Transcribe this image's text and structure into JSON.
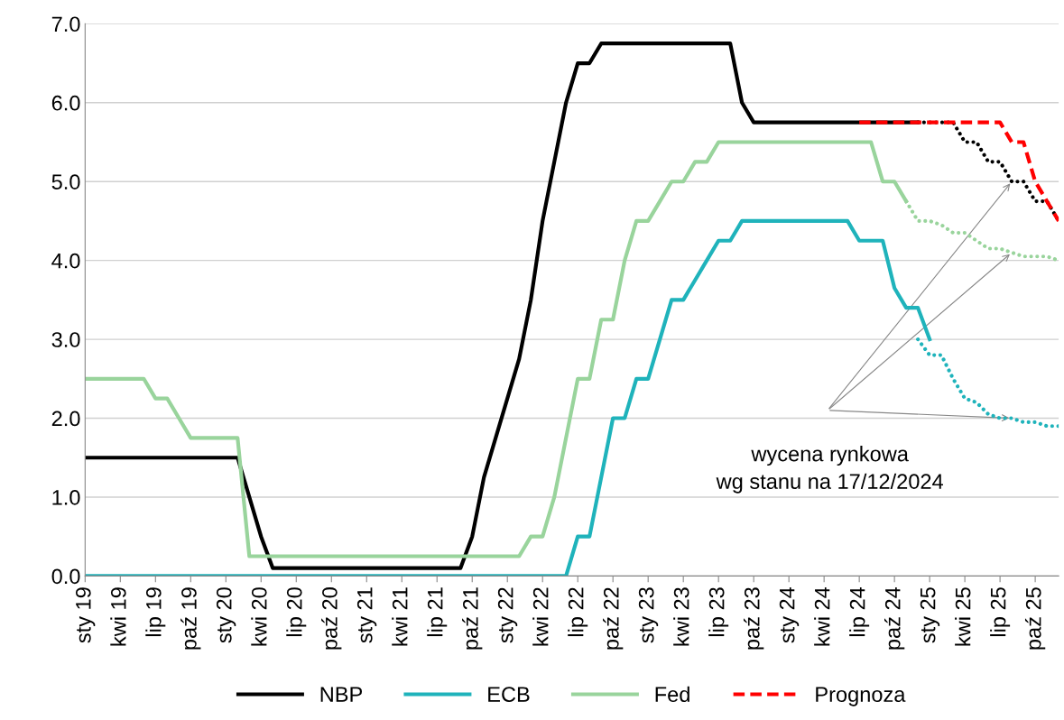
{
  "chart_data": {
    "type": "line",
    "categories": [
      "sty 19",
      null,
      null,
      "kwi 19",
      null,
      null,
      "lip 19",
      null,
      null,
      "paź 19",
      null,
      null,
      "sty 20",
      null,
      null,
      "kwi 20",
      null,
      null,
      "lip 20",
      null,
      null,
      "paź 20",
      null,
      null,
      "sty 21",
      null,
      null,
      "kwi 21",
      null,
      null,
      "lip 21",
      null,
      null,
      "paź 21",
      null,
      null,
      "sty 22",
      null,
      null,
      "kwi 22",
      null,
      null,
      "lip 22",
      null,
      null,
      "paź 22",
      null,
      null,
      "sty 23",
      null,
      null,
      "kwi 23",
      null,
      null,
      "lip 23",
      null,
      null,
      "paź 23",
      null,
      null,
      "sty 24",
      null,
      null,
      "kwi 24",
      null,
      null,
      "lip 24",
      null,
      null,
      "paź 24",
      null,
      null,
      "sty 25",
      null,
      null,
      "kwi 25",
      null,
      null,
      "lip 25",
      null,
      null,
      "paź 25",
      null,
      null
    ],
    "series": [
      {
        "name": "NBP",
        "color": "#000000",
        "line_style": "solid",
        "values": [
          1.5,
          1.5,
          1.5,
          1.5,
          1.5,
          1.5,
          1.5,
          1.5,
          1.5,
          1.5,
          1.5,
          1.5,
          1.5,
          1.5,
          1.0,
          0.5,
          0.1,
          0.1,
          0.1,
          0.1,
          0.1,
          0.1,
          0.1,
          0.1,
          0.1,
          0.1,
          0.1,
          0.1,
          0.1,
          0.1,
          0.1,
          0.1,
          0.1,
          0.5,
          1.25,
          1.75,
          2.25,
          2.75,
          3.5,
          4.5,
          5.25,
          6.0,
          6.5,
          6.5,
          6.75,
          6.75,
          6.75,
          6.75,
          6.75,
          6.75,
          6.75,
          6.75,
          6.75,
          6.75,
          6.75,
          6.75,
          6.0,
          5.75,
          5.75,
          5.75,
          5.75,
          5.75,
          5.75,
          5.75,
          5.75,
          5.75,
          5.75,
          5.75,
          5.75,
          5.75,
          5.75,
          5.75,
          null,
          null,
          null,
          null,
          null,
          null,
          null,
          null,
          null,
          null,
          null,
          null
        ]
      },
      {
        "name": "ECB",
        "color": "#1fb3bb",
        "line_style": "solid",
        "values": [
          0,
          0,
          0,
          0,
          0,
          0,
          0,
          0,
          0,
          0,
          0,
          0,
          0,
          0,
          0,
          0,
          0,
          0,
          0,
          0,
          0,
          0,
          0,
          0,
          0,
          0,
          0,
          0,
          0,
          0,
          0,
          0,
          0,
          0,
          0,
          0,
          0,
          0,
          0,
          0,
          0,
          0,
          0.5,
          0.5,
          1.25,
          2.0,
          2.0,
          2.5,
          2.5,
          3.0,
          3.5,
          3.5,
          3.75,
          4.0,
          4.25,
          4.25,
          4.5,
          4.5,
          4.5,
          4.5,
          4.5,
          4.5,
          4.5,
          4.5,
          4.5,
          4.5,
          4.25,
          4.25,
          4.25,
          3.65,
          3.4,
          3.4,
          3.0,
          null,
          null,
          null,
          null,
          null,
          null,
          null,
          null,
          null,
          null,
          null
        ]
      },
      {
        "name": "Fed",
        "color": "#99d49c",
        "line_style": "solid",
        "values": [
          2.5,
          2.5,
          2.5,
          2.5,
          2.5,
          2.5,
          2.25,
          2.25,
          2.0,
          1.75,
          1.75,
          1.75,
          1.75,
          1.75,
          0.25,
          0.25,
          0.25,
          0.25,
          0.25,
          0.25,
          0.25,
          0.25,
          0.25,
          0.25,
          0.25,
          0.25,
          0.25,
          0.25,
          0.25,
          0.25,
          0.25,
          0.25,
          0.25,
          0.25,
          0.25,
          0.25,
          0.25,
          0.25,
          0.5,
          0.5,
          1.0,
          1.75,
          2.5,
          2.5,
          3.25,
          3.25,
          4.0,
          4.5,
          4.5,
          4.75,
          5.0,
          5.0,
          5.25,
          5.25,
          5.5,
          5.5,
          5.5,
          5.5,
          5.5,
          5.5,
          5.5,
          5.5,
          5.5,
          5.5,
          5.5,
          5.5,
          5.5,
          5.5,
          5.0,
          5.0,
          4.75,
          null,
          null,
          null,
          null,
          null,
          null,
          null,
          null,
          null,
          null,
          null,
          null,
          null
        ]
      },
      {
        "color": "#000000",
        "line_style": "dotted",
        "values": [
          null,
          null,
          null,
          null,
          null,
          null,
          null,
          null,
          null,
          null,
          null,
          null,
          null,
          null,
          null,
          null,
          null,
          null,
          null,
          null,
          null,
          null,
          null,
          null,
          null,
          null,
          null,
          null,
          null,
          null,
          null,
          null,
          null,
          null,
          null,
          null,
          null,
          null,
          null,
          null,
          null,
          null,
          null,
          null,
          null,
          null,
          null,
          null,
          null,
          null,
          null,
          null,
          null,
          null,
          null,
          null,
          null,
          null,
          null,
          null,
          null,
          null,
          null,
          null,
          null,
          null,
          null,
          null,
          null,
          null,
          null,
          5.75,
          5.75,
          5.75,
          5.75,
          5.5,
          5.5,
          5.25,
          5.25,
          5.0,
          5.0,
          4.75,
          4.75,
          4.5
        ]
      },
      {
        "color": "#1fb3bb",
        "line_style": "dotted",
        "values": [
          null,
          null,
          null,
          null,
          null,
          null,
          null,
          null,
          null,
          null,
          null,
          null,
          null,
          null,
          null,
          null,
          null,
          null,
          null,
          null,
          null,
          null,
          null,
          null,
          null,
          null,
          null,
          null,
          null,
          null,
          null,
          null,
          null,
          null,
          null,
          null,
          null,
          null,
          null,
          null,
          null,
          null,
          null,
          null,
          null,
          null,
          null,
          null,
          null,
          null,
          null,
          null,
          null,
          null,
          null,
          null,
          null,
          null,
          null,
          null,
          null,
          null,
          null,
          null,
          null,
          null,
          null,
          null,
          null,
          null,
          null,
          3.0,
          2.8,
          2.8,
          2.5,
          2.25,
          2.2,
          2.05,
          2.0,
          2.0,
          1.95,
          1.95,
          1.9,
          1.9
        ]
      },
      {
        "color": "#99d49c",
        "line_style": "dotted",
        "values": [
          null,
          null,
          null,
          null,
          null,
          null,
          null,
          null,
          null,
          null,
          null,
          null,
          null,
          null,
          null,
          null,
          null,
          null,
          null,
          null,
          null,
          null,
          null,
          null,
          null,
          null,
          null,
          null,
          null,
          null,
          null,
          null,
          null,
          null,
          null,
          null,
          null,
          null,
          null,
          null,
          null,
          null,
          null,
          null,
          null,
          null,
          null,
          null,
          null,
          null,
          null,
          null,
          null,
          null,
          null,
          null,
          null,
          null,
          null,
          null,
          null,
          null,
          null,
          null,
          null,
          null,
          null,
          null,
          null,
          null,
          4.75,
          4.5,
          4.5,
          4.45,
          4.35,
          4.35,
          4.25,
          4.15,
          4.15,
          4.1,
          4.05,
          4.05,
          4.05,
          4.0
        ]
      },
      {
        "name": "Prognoza",
        "color": "#ff0000",
        "line_style": "dashed",
        "values": [
          null,
          null,
          null,
          null,
          null,
          null,
          null,
          null,
          null,
          null,
          null,
          null,
          null,
          null,
          null,
          null,
          null,
          null,
          null,
          null,
          null,
          null,
          null,
          null,
          null,
          null,
          null,
          null,
          null,
          null,
          null,
          null,
          null,
          null,
          null,
          null,
          null,
          null,
          null,
          null,
          null,
          null,
          null,
          null,
          null,
          null,
          null,
          null,
          null,
          null,
          null,
          null,
          null,
          null,
          null,
          null,
          null,
          null,
          null,
          null,
          null,
          null,
          null,
          null,
          null,
          null,
          5.75,
          5.75,
          5.75,
          5.75,
          5.75,
          5.75,
          5.75,
          5.75,
          5.75,
          5.75,
          5.75,
          5.75,
          5.75,
          5.5,
          5.5,
          5.0,
          4.75,
          4.5
        ]
      }
    ],
    "ylim": [
      0,
      7
    ],
    "yticks": [
      {
        "value": 0,
        "label": "0.0"
      },
      {
        "value": 1,
        "label": "1.0"
      },
      {
        "value": 2,
        "label": "2.0"
      },
      {
        "value": 3,
        "label": "3.0"
      },
      {
        "value": 4,
        "label": "4.0"
      },
      {
        "value": 5,
        "label": "5.0"
      },
      {
        "value": 6,
        "label": "6.0"
      },
      {
        "value": 7,
        "label": "7.0"
      }
    ],
    "grid": "y",
    "legend": "bottom",
    "marker": "none",
    "annotations": [
      "wycena rynkowa\nwg stanu na 17/12/2024"
    ]
  }
}
